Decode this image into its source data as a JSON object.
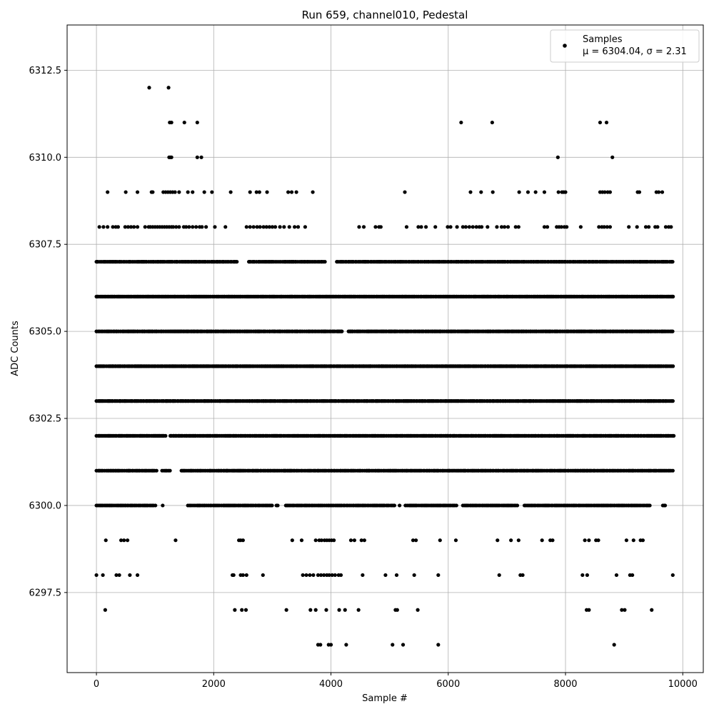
{
  "chart_data": {
    "type": "scatter",
    "title": "Run 659, channel010, Pedestal",
    "xlabel": "Sample #",
    "ylabel": "ADC Counts",
    "xlim": [
      -500,
      10350
    ],
    "ylim": [
      6295.2,
      6313.8
    ],
    "xticks": [
      0,
      2000,
      4000,
      6000,
      8000,
      10000
    ],
    "yticks": [
      6297.5,
      6300.0,
      6302.5,
      6305.0,
      6307.5,
      6310.0,
      6312.5
    ],
    "grid": true,
    "legend_position": "top-right",
    "series": [
      {
        "name": "Samples",
        "legend_stats": "μ = 6304.04, σ = 2.31",
        "color": "#000000",
        "bands": [
          {
            "y": 6296,
            "x": [
              3780,
              3820,
              3960,
              4000,
              4260,
              5050,
              5230,
              5830,
              8830
            ]
          },
          {
            "y": 6297,
            "x": [
              150,
              2360,
              2480,
              2550,
              3240,
              3650,
              3740,
              3920,
              4140,
              4240,
              4470,
              5100,
              5130,
              5480,
              8360,
              8400,
              8960,
              9010,
              9470
            ]
          },
          {
            "y": 6298,
            "x": [
              0,
              110,
              340,
              390,
              570,
              700,
              2320,
              2340,
              2460,
              2500,
              2560,
              2840,
              3520,
              3580,
              3640,
              3700,
              3780,
              3830,
              3880,
              3930,
              3970,
              4020,
              4070,
              4130,
              4170,
              4540,
              4930,
              5120,
              5420,
              5830,
              6870,
              7230,
              7270,
              8290,
              8370,
              8870,
              9100,
              9140,
              9830
            ]
          },
          {
            "y": 6299,
            "x": [
              160,
              420,
              470,
              530,
              1350,
              2430,
              2460,
              2500,
              3340,
              3500,
              3740,
              3800,
              3840,
              3890,
              3930,
              3970,
              4010,
              4050,
              4340,
              4400,
              4520,
              4570,
              5400,
              5450,
              5860,
              6130,
              6840,
              7070,
              7200,
              7600,
              7740,
              7780,
              8330,
              8400,
              8520,
              8560,
              9040,
              9160,
              9280,
              9320
            ]
          }
        ],
        "dense_bands": [
          {
            "y": 6300,
            "ranges": [
              [
                0,
                1020
              ],
              [
                1130,
                1150
              ],
              [
                1560,
                3000
              ],
              [
                3070,
                3100
              ],
              [
                3230,
                5100
              ],
              [
                5170,
                5200
              ],
              [
                5270,
                6150
              ],
              [
                6250,
                7200
              ],
              [
                7300,
                9460
              ],
              [
                9660,
                9700
              ]
            ]
          },
          {
            "y": 6301,
            "ranges": [
              [
                0,
                1050
              ],
              [
                1120,
                1260
              ],
              [
                1450,
                9850
              ]
            ]
          },
          {
            "y": 6302,
            "ranges": [
              [
                0,
                1200
              ],
              [
                1260,
                9850
              ]
            ]
          },
          {
            "y": 6303,
            "ranges": [
              [
                0,
                9850
              ]
            ]
          },
          {
            "y": 6304,
            "ranges": [
              [
                0,
                9850
              ]
            ]
          },
          {
            "y": 6305,
            "ranges": [
              [
                0,
                4200
              ],
              [
                4300,
                9850
              ]
            ]
          },
          {
            "y": 6306,
            "ranges": [
              [
                0,
                9850
              ]
            ]
          },
          {
            "y": 6307,
            "ranges": [
              [
                0,
                2400
              ],
              [
                2600,
                3900
              ],
              [
                4100,
                9850
              ]
            ]
          }
        ],
        "sparse_upper": [
          {
            "y": 6308,
            "x": [
              50,
              120,
              190,
              280,
              330,
              370,
              490,
              540,
              590,
              640,
              700,
              830,
              890,
              920,
              960,
              1000,
              1040,
              1080,
              1120,
              1160,
              1200,
              1240,
              1280,
              1310,
              1360,
              1410,
              1490,
              1530,
              1580,
              1640,
              1700,
              1760,
              1800,
              1870,
              2020,
              2200,
              2560,
              2620,
              2680,
              2740,
              2790,
              2850,
              2900,
              2950,
              3000,
              3050,
              3130,
              3200,
              3290,
              3380,
              3440,
              3560,
              4480,
              4560,
              4760,
              4820,
              4850,
              5290,
              5490,
              5540,
              5620,
              5780,
              5990,
              6040,
              6150,
              6250,
              6300,
              6360,
              6420,
              6480,
              6530,
              6570,
              6670,
              6830,
              6910,
              6960,
              7020,
              7150,
              7200,
              7640,
              7690,
              7850,
              7890,
              7930,
              7980,
              8020,
              8260,
              8570,
              8620,
              8660,
              8710,
              8760,
              9080,
              9220,
              9370,
              9420,
              9530,
              9570,
              9710,
              9760,
              9800
            ]
          },
          {
            "y": 6309,
            "x": [
              190,
              500,
              700,
              940,
              960,
              1140,
              1180,
              1220,
              1260,
              1300,
              1340,
              1410,
              1560,
              1640,
              1840,
              1970,
              2290,
              2620,
              2730,
              2780,
              2910,
              3270,
              3330,
              3410,
              3690,
              5260,
              6380,
              6560,
              6760,
              7210,
              7360,
              7490,
              7640,
              7880,
              7940,
              7970,
              8000,
              8590,
              8630,
              8670,
              8720,
              8760,
              9230,
              9260,
              9550,
              9590,
              9650
            ]
          },
          {
            "y": 6310,
            "x": [
              1240,
              1260,
              1280,
              1720,
              1790,
              7870,
              8800
            ]
          },
          {
            "y": 6311,
            "x": [
              1250,
              1280,
              1500,
              1720,
              6220,
              6750,
              8590,
              8700
            ]
          },
          {
            "y": 6312,
            "x": [
              900,
              1230
            ]
          }
        ]
      }
    ]
  },
  "legend": {
    "label": "Samples",
    "stats": "μ = 6304.04, σ = 2.31"
  }
}
